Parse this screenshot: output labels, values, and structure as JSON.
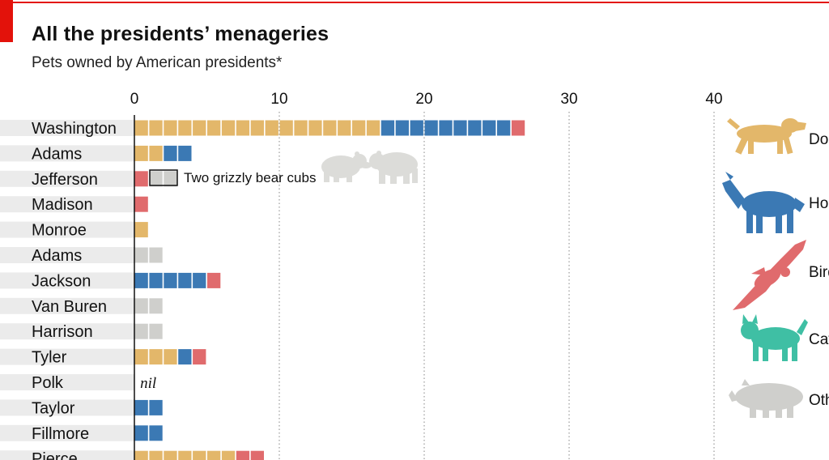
{
  "header": {
    "title": "All the presidents’ menageries",
    "subtitle": "Pets owned by American presidents*"
  },
  "colors": {
    "Dogs": "#e3b76a",
    "Horses": "#3b79b4",
    "Birds": "#e06b6d",
    "Cats": "#3fbfa4",
    "Other": "#cfcfcc",
    "accent": "#e3120b"
  },
  "chart_data": {
    "type": "bar",
    "orientation": "horizontal",
    "stacked": true,
    "xlim": [
      0,
      48
    ],
    "xticks": [
      0,
      10,
      20,
      30,
      40
    ],
    "grid": "vertical dotted",
    "legend_position": "right",
    "legend": [
      {
        "label": "Dogs",
        "icon": "dog-icon"
      },
      {
        "label": "Horses",
        "icon": "horse-icon"
      },
      {
        "label": "Birds",
        "icon": "bird-icon"
      },
      {
        "label": "Cats",
        "icon": "cat-icon"
      },
      {
        "label": "Other",
        "icon": "pig-icon"
      }
    ],
    "categories": [
      "Washington",
      "Adams",
      "Jefferson",
      "Madison",
      "Monroe",
      "Adams",
      "Jackson",
      "Van Buren",
      "Harrison",
      "Tyler",
      "Polk",
      "Taylor",
      "Fillmore",
      "Pierce"
    ],
    "series": [
      {
        "name": "Dogs",
        "values": [
          17,
          2,
          0,
          0,
          1,
          0,
          0,
          0,
          0,
          3,
          0,
          0,
          0,
          7
        ]
      },
      {
        "name": "Horses",
        "values": [
          9,
          2,
          0,
          0,
          0,
          0,
          5,
          0,
          0,
          1,
          0,
          2,
          2,
          0
        ]
      },
      {
        "name": "Birds",
        "values": [
          1,
          0,
          1,
          1,
          0,
          0,
          1,
          0,
          0,
          1,
          0,
          0,
          0,
          2
        ]
      },
      {
        "name": "Cats",
        "values": [
          0,
          0,
          0,
          0,
          0,
          0,
          0,
          0,
          0,
          0,
          0,
          0,
          0,
          0
        ]
      },
      {
        "name": "Other",
        "values": [
          0,
          0,
          2,
          0,
          0,
          2,
          0,
          2,
          2,
          0,
          0,
          0,
          0,
          0
        ]
      }
    ],
    "row_notes": {
      "Polk": "nil"
    },
    "annotation": {
      "row": "Jefferson",
      "text": "Two grizzly bear cubs"
    }
  }
}
